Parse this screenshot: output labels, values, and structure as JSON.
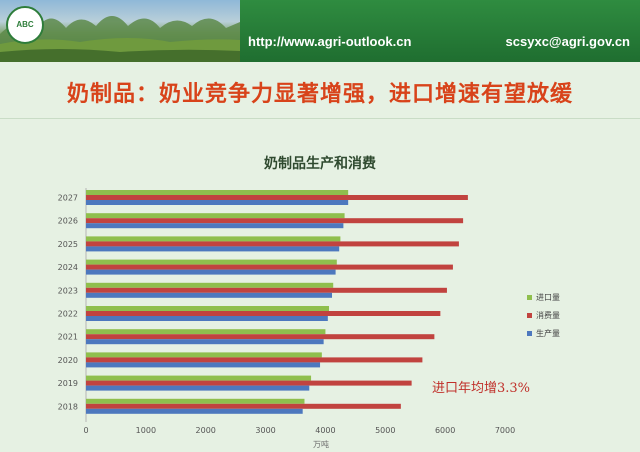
{
  "header": {
    "logo_text": "ABC",
    "url": "http://www.agri-outlook.cn",
    "email": "scsyxc@agri.gov.cn"
  },
  "slide_title": "奶制品：奶业竞争力显著增强，进口增速有望放缓",
  "colors": {
    "header_green": "#2f8c40",
    "title_red": "#d8431a",
    "import": "#8fbf4d",
    "consumption": "#c1433f",
    "production": "#4d78be"
  },
  "chart_data": {
    "type": "bar",
    "orientation": "horizontal",
    "title": "奶制品生产和消费",
    "xlabel": "万吨",
    "ylabel": "",
    "xlim": [
      0,
      7000
    ],
    "xticks": [
      0,
      1000,
      2000,
      3000,
      4000,
      5000,
      6000,
      7000
    ],
    "grid": false,
    "legend_position": "right",
    "categories": [
      "2027",
      "2026",
      "2025",
      "2024",
      "2023",
      "2022",
      "2021",
      "2020",
      "2019",
      "2018"
    ],
    "series": [
      {
        "name": "进口量",
        "color": "#8fbf4d",
        "values": [
          4380,
          4320,
          4250,
          4190,
          4130,
          4060,
          4000,
          3940,
          3760,
          3650
        ]
      },
      {
        "name": "消费量",
        "color": "#c1433f",
        "values": [
          6380,
          6300,
          6230,
          6130,
          6030,
          5920,
          5820,
          5620,
          5440,
          5260
        ]
      },
      {
        "name": "生产量",
        "color": "#4d78be",
        "values": [
          4380,
          4300,
          4230,
          4170,
          4110,
          4040,
          3970,
          3910,
          3730,
          3620
        ]
      }
    ],
    "annotation": "进口年均增3.3%"
  }
}
